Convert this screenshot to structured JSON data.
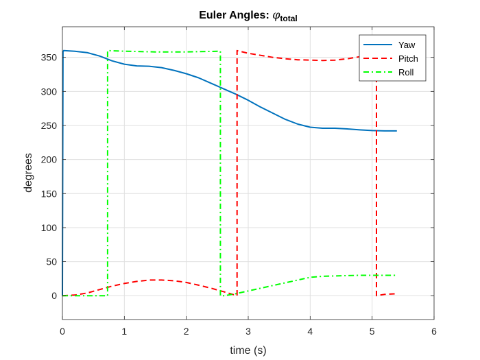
{
  "chart_data": {
    "type": "line",
    "title": "Euler Angles: ",
    "title_symbol": "φ",
    "title_subscript": "total",
    "xlabel": "time (s)",
    "ylabel": "degrees",
    "xlim": [
      0,
      6
    ],
    "ylim": [
      -35,
      395
    ],
    "xticks": [
      0,
      1,
      2,
      3,
      4,
      5,
      6
    ],
    "xtick_labels": [
      "0",
      "1",
      "2",
      "3",
      "4",
      "5",
      "6"
    ],
    "yticks": [
      0,
      50,
      100,
      150,
      200,
      250,
      300,
      350
    ],
    "ytick_labels": [
      "0",
      "50",
      "100",
      "150",
      "200",
      "250",
      "300",
      "350"
    ],
    "grid": true,
    "legend": "top-right",
    "series": [
      {
        "name": "Yaw",
        "color": "#0072BD",
        "style": "solid",
        "points": [
          [
            0,
            0
          ],
          [
            0.01,
            358
          ],
          [
            0.02,
            360
          ],
          [
            0.2,
            359
          ],
          [
            0.4,
            357
          ],
          [
            0.6,
            352
          ],
          [
            0.8,
            345
          ],
          [
            1.0,
            340
          ],
          [
            1.2,
            337.5
          ],
          [
            1.4,
            337
          ],
          [
            1.6,
            335
          ],
          [
            1.8,
            331
          ],
          [
            2.0,
            326
          ],
          [
            2.2,
            320
          ],
          [
            2.4,
            312
          ],
          [
            2.6,
            304
          ],
          [
            2.8,
            296
          ],
          [
            3.0,
            287
          ],
          [
            3.2,
            277
          ],
          [
            3.4,
            268
          ],
          [
            3.6,
            259
          ],
          [
            3.8,
            252
          ],
          [
            4.0,
            247.5
          ],
          [
            4.2,
            246
          ],
          [
            4.4,
            246
          ],
          [
            4.6,
            245
          ],
          [
            4.8,
            243.5
          ],
          [
            5.0,
            242.5
          ],
          [
            5.2,
            242
          ],
          [
            5.4,
            242
          ]
        ]
      },
      {
        "name": "Pitch",
        "color": "#FF0000",
        "style": "dashed",
        "points": [
          [
            0,
            0
          ],
          [
            0.2,
            1
          ],
          [
            0.4,
            4
          ],
          [
            0.6,
            9
          ],
          [
            0.8,
            14
          ],
          [
            1.0,
            18
          ],
          [
            1.2,
            21
          ],
          [
            1.4,
            23
          ],
          [
            1.6,
            23
          ],
          [
            1.8,
            22
          ],
          [
            2.0,
            19.5
          ],
          [
            2.2,
            15.5
          ],
          [
            2.4,
            11
          ],
          [
            2.6,
            6
          ],
          [
            2.75,
            2
          ],
          [
            2.82,
            0
          ],
          [
            2.82,
            360
          ],
          [
            3.0,
            356
          ],
          [
            3.2,
            353
          ],
          [
            3.4,
            350
          ],
          [
            3.6,
            348
          ],
          [
            3.8,
            346.5
          ],
          [
            4.0,
            346
          ],
          [
            4.2,
            345.5
          ],
          [
            4.4,
            346
          ],
          [
            4.6,
            348
          ],
          [
            4.8,
            351
          ],
          [
            5.0,
            355
          ],
          [
            5.07,
            357
          ],
          [
            5.07,
            0
          ],
          [
            5.2,
            2
          ],
          [
            5.4,
            3
          ]
        ]
      },
      {
        "name": "Roll",
        "color": "#00FF00",
        "style": "dashdot",
        "points": [
          [
            0,
            0
          ],
          [
            0.73,
            0
          ],
          [
            0.73,
            360
          ],
          [
            1.0,
            359
          ],
          [
            1.5,
            358
          ],
          [
            2.0,
            358
          ],
          [
            2.55,
            359
          ],
          [
            2.55,
            0
          ],
          [
            2.62,
            0
          ],
          [
            2.8,
            3
          ],
          [
            3.0,
            7
          ],
          [
            3.2,
            11
          ],
          [
            3.4,
            15
          ],
          [
            3.6,
            19
          ],
          [
            3.8,
            23
          ],
          [
            4.0,
            27
          ],
          [
            4.2,
            28.5
          ],
          [
            4.4,
            29
          ],
          [
            4.6,
            29.5
          ],
          [
            4.8,
            30
          ],
          [
            5.0,
            30
          ],
          [
            5.2,
            30
          ],
          [
            5.4,
            30
          ]
        ]
      }
    ]
  }
}
